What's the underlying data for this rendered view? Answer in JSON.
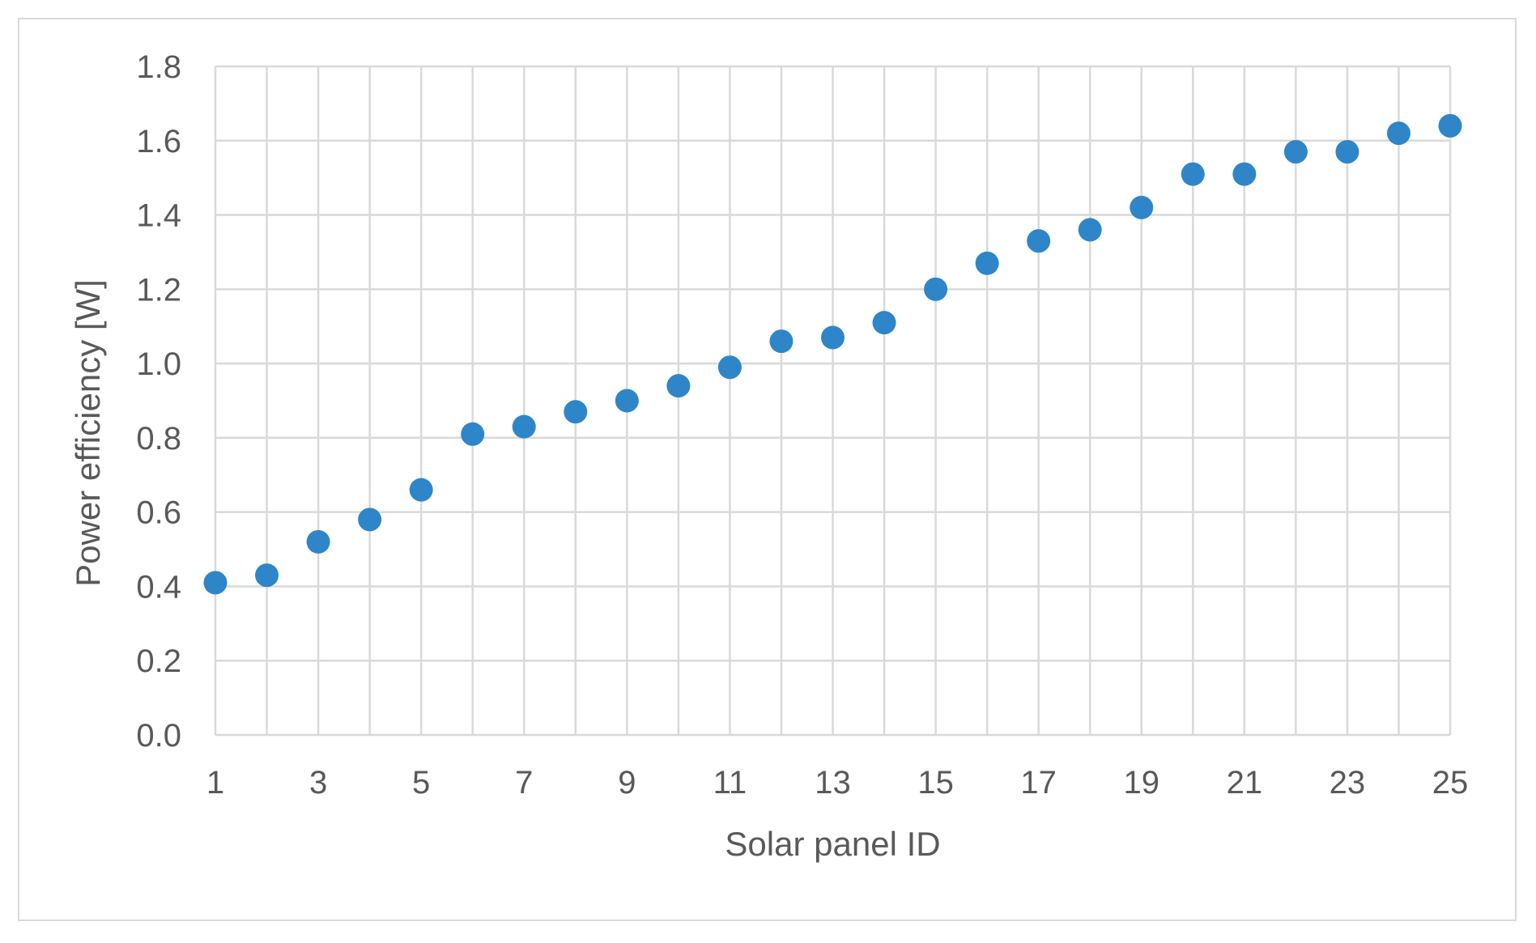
{
  "chart_data": {
    "type": "scatter",
    "title": "",
    "xlabel": "Solar panel ID",
    "ylabel": "Power efficiency [W]",
    "xlim": [
      1,
      25
    ],
    "ylim": [
      0.0,
      1.8
    ],
    "x_ticks": [
      1,
      3,
      5,
      7,
      9,
      11,
      13,
      15,
      17,
      19,
      21,
      23,
      25
    ],
    "x_tick_labels": [
      "1",
      "3",
      "5",
      "7",
      "9",
      "11",
      "13",
      "15",
      "17",
      "19",
      "21",
      "23",
      "25"
    ],
    "y_ticks": [
      0.0,
      0.2,
      0.4,
      0.6,
      0.8,
      1.0,
      1.2,
      1.4,
      1.6,
      1.8
    ],
    "y_tick_labels": [
      "0.0",
      "0.2",
      "0.4",
      "0.6",
      "0.8",
      "1.0",
      "1.2",
      "1.4",
      "1.6",
      "1.8"
    ],
    "x_gridlines": [
      1,
      2,
      3,
      4,
      5,
      6,
      7,
      8,
      9,
      10,
      11,
      12,
      13,
      14,
      15,
      16,
      17,
      18,
      19,
      20,
      21,
      22,
      23,
      24,
      25
    ],
    "grid": true,
    "legend": "none",
    "marker_color": "#2e86c8",
    "gridline_color": "#d9d9d9",
    "text_color": "#595959",
    "series": [
      {
        "x": [
          1,
          2,
          3,
          4,
          5,
          6,
          7,
          8,
          9,
          10,
          11,
          12,
          13,
          14,
          15,
          16,
          17,
          18,
          19,
          20,
          21,
          22,
          23,
          24,
          25
        ],
        "y": [
          0.41,
          0.43,
          0.52,
          0.58,
          0.66,
          0.81,
          0.83,
          0.87,
          0.9,
          0.94,
          0.99,
          1.06,
          1.07,
          1.11,
          1.2,
          1.27,
          1.33,
          1.36,
          1.42,
          1.51,
          1.51,
          1.57,
          1.57,
          1.62,
          1.64
        ]
      }
    ]
  }
}
